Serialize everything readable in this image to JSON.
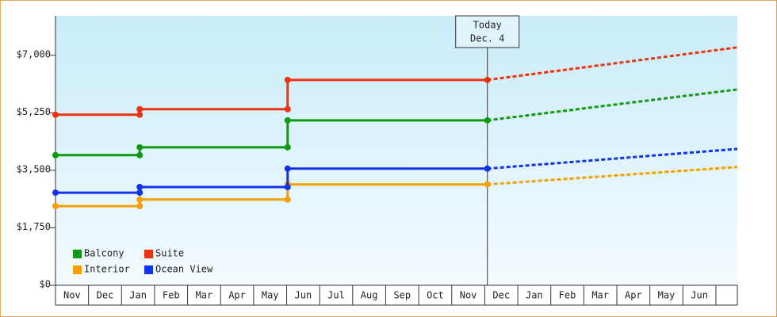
{
  "chart_data": {
    "type": "line",
    "categories": [
      "Nov",
      "Dec",
      "Jan",
      "Feb",
      "Mar",
      "Apr",
      "May",
      "Jun",
      "Jul",
      "Aug",
      "Sep",
      "Oct",
      "Nov",
      "Dec",
      "Jan",
      "Feb",
      "Mar",
      "Apr",
      "May",
      "Jun"
    ],
    "xlim": [
      0,
      20.65
    ],
    "ylim": [
      0,
      8200
    ],
    "yticks": [
      {
        "value": 0,
        "label": "$0"
      },
      {
        "value": 1750,
        "label": "$1,750"
      },
      {
        "value": 3500,
        "label": "$3,500"
      },
      {
        "value": 5250,
        "label": "$5,250"
      },
      {
        "value": 7000,
        "label": "$7,000"
      }
    ],
    "annotation": {
      "lines": [
        "Today",
        "Dec. 4"
      ],
      "x": 13.08
    },
    "legend": "lower left",
    "series": [
      {
        "name": "Balcony",
        "color": "#119911",
        "x": [
          0,
          2.55,
          2.55,
          7.03,
          7.03,
          13.08
        ],
        "values": [
          3960,
          3960,
          4200,
          4200,
          5020,
          5020
        ],
        "projection": {
          "x": [
            13.08,
            20.65
          ],
          "values": [
            5020,
            5960
          ]
        }
      },
      {
        "name": "Suite",
        "color": "#ee3311",
        "x": [
          0,
          2.55,
          2.55,
          7.03,
          7.03,
          13.08
        ],
        "values": [
          5190,
          5190,
          5360,
          5360,
          6250,
          6250
        ],
        "projection": {
          "x": [
            13.08,
            20.65
          ],
          "values": [
            6250,
            7240
          ]
        }
      },
      {
        "name": "Interior",
        "color": "#f5a000",
        "x": [
          0,
          2.55,
          2.55,
          7.03,
          7.03,
          13.08
        ],
        "values": [
          2410,
          2410,
          2610,
          2610,
          3070,
          3070
        ],
        "projection": {
          "x": [
            13.08,
            20.65
          ],
          "values": [
            3070,
            3600
          ]
        }
      },
      {
        "name": "Ocean View",
        "color": "#1133ee",
        "x": [
          0,
          2.55,
          2.55,
          7.03,
          7.03,
          13.08
        ],
        "values": [
          2820,
          2820,
          2990,
          2990,
          3550,
          3550
        ],
        "projection": {
          "x": [
            13.08,
            20.65
          ],
          "values": [
            3550,
            4150
          ]
        }
      }
    ]
  }
}
